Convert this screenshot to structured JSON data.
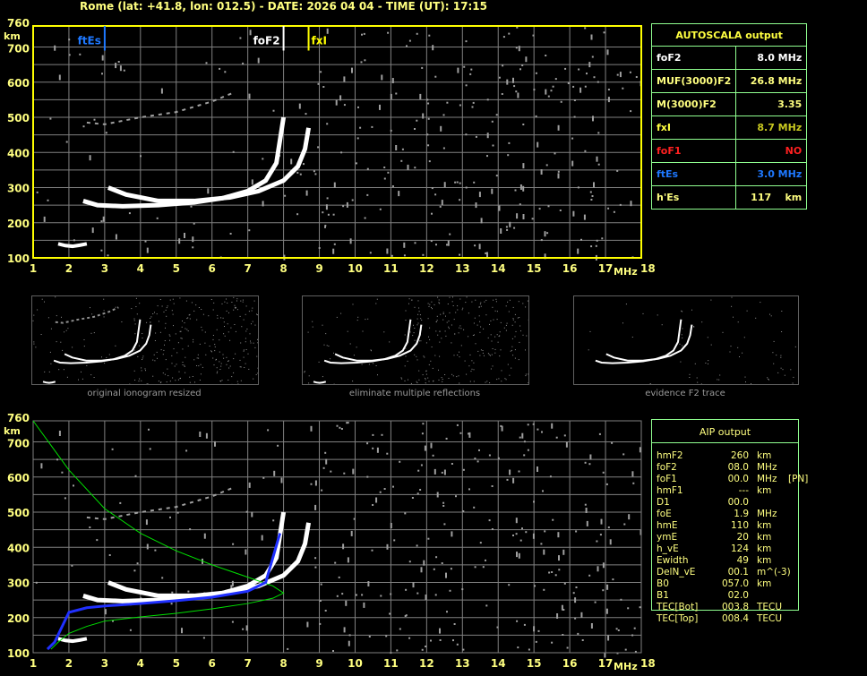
{
  "header": {
    "title": "Rome (lat: +41.8, lon: 012.5) - DATE: 2026 04 04 - TIME (UT): 17:15"
  },
  "colors": {
    "axis": "#ffff00",
    "grid": "#808080",
    "foF2": "#ffffff",
    "fxI": "#ffff00",
    "ftEs": "#1e78ff",
    "foF1": "#ff2020",
    "profile": "#00e000",
    "trace_fit": "#2030ff"
  },
  "thumbnails": [
    {
      "caption": "original ionogram resized"
    },
    {
      "caption": "eliminate multiple reflections"
    },
    {
      "caption": "evidence F2 trace"
    }
  ],
  "autoscala": {
    "title": "AUTOSCALA output",
    "rows": [
      {
        "label": "foF2",
        "value": "8.0 MHz",
        "color": "#ffffff"
      },
      {
        "label": "MUF(3000)F2",
        "value": "26.8 MHz",
        "color": "#ffff80"
      },
      {
        "label": "M(3000)F2",
        "value": "3.35",
        "color": "#ffff80"
      },
      {
        "label": "fxI",
        "value": "8.7 MHz",
        "color": "#ffff40",
        "value_color": "#c8c820"
      },
      {
        "label": "foF1",
        "value": "NO",
        "color": "#ff2020"
      },
      {
        "label": "ftEs",
        "value": "3.0 MHz",
        "color": "#1e78ff"
      },
      {
        "label": "h'Es",
        "value": "117    km",
        "color": "#ffff80"
      }
    ]
  },
  "aip": {
    "title": "AIP output",
    "rows": [
      {
        "name": "hmF2",
        "value": "260",
        "unit": "km",
        "extra": ""
      },
      {
        "name": "foF2",
        "value": "08.0",
        "unit": "MHz",
        "extra": ""
      },
      {
        "name": "foF1",
        "value": "00.0",
        "unit": "MHz",
        "extra": "[PN]"
      },
      {
        "name": "hmF1",
        "value": "---",
        "unit": "km",
        "extra": ""
      },
      {
        "name": "D1",
        "value": "00.0",
        "unit": "",
        "extra": ""
      },
      {
        "name": "foE",
        "value": "1.9",
        "unit": "MHz",
        "extra": ""
      },
      {
        "name": "hmE",
        "value": "110",
        "unit": "km",
        "extra": ""
      },
      {
        "name": "ymE",
        "value": "20",
        "unit": "km",
        "extra": ""
      },
      {
        "name": "h_vE",
        "value": "124",
        "unit": "km",
        "extra": ""
      },
      {
        "name": "Ewidth",
        "value": "49",
        "unit": "km",
        "extra": ""
      },
      {
        "name": "DelN_vE",
        "value": "00.1",
        "unit": "m^(-3)",
        "extra": ""
      },
      {
        "name": "B0",
        "value": "057.0",
        "unit": "km",
        "extra": ""
      },
      {
        "name": "B1",
        "value": "02.0",
        "unit": "",
        "extra": ""
      },
      {
        "name": "TEC[Bot]",
        "value": "003.8",
        "unit": "TECU",
        "extra": ""
      },
      {
        "name": "TEC[Top]",
        "value": "008.4",
        "unit": "TECU",
        "extra": ""
      }
    ]
  },
  "chart_data": [
    {
      "type": "scatter",
      "title": "",
      "xlabel": "MHz",
      "ylabel": "km",
      "xlim": [
        1,
        18
      ],
      "ylim": [
        100,
        760
      ],
      "grid": true,
      "xticks": [
        "1",
        "2",
        "3",
        "4",
        "5",
        "6",
        "7",
        "8",
        "9",
        "10",
        "11",
        "12",
        "13",
        "14",
        "15",
        "16",
        "17",
        "18"
      ],
      "yticks": [
        "100",
        "200",
        "300",
        "400",
        "500",
        "600",
        "700",
        "760"
      ],
      "markers": [
        {
          "label": "ftEs",
          "x": 3.0
        },
        {
          "label": "foF2",
          "x": 8.0
        },
        {
          "label": "fxI",
          "x": 8.7
        }
      ],
      "series": [
        {
          "id": "o_trace",
          "x": [
            2.4,
            2.8,
            3.5,
            4.5,
            5.5,
            6.3,
            7.0,
            7.5,
            7.8,
            8.0
          ],
          "y": [
            262,
            250,
            247,
            250,
            258,
            270,
            290,
            320,
            370,
            500
          ]
        },
        {
          "id": "x_trace",
          "x": [
            3.1,
            3.6,
            4.5,
            5.5,
            6.5,
            7.3,
            8.0,
            8.4,
            8.6,
            8.7
          ],
          "y": [
            300,
            280,
            262,
            262,
            272,
            290,
            320,
            360,
            410,
            470
          ]
        },
        {
          "id": "es_trace",
          "x": [
            1.7,
            1.9,
            2.1,
            2.3,
            2.5
          ],
          "y": [
            140,
            135,
            133,
            136,
            140
          ]
        },
        {
          "id": "multiple",
          "x": [
            2.5,
            3.0,
            4.0,
            5.0,
            6.0,
            6.6
          ],
          "y": [
            485,
            480,
            500,
            515,
            545,
            570
          ]
        }
      ]
    },
    {
      "type": "line",
      "title": "",
      "xlabel": "MHz",
      "ylabel": "km",
      "xlim": [
        1,
        18
      ],
      "ylim": [
        100,
        760
      ],
      "grid": true,
      "series": [
        {
          "id": "profile",
          "x": [
            1.0,
            1.5,
            2.0,
            3.0,
            4.0,
            5.0,
            6.0,
            7.0,
            7.7,
            8.0,
            7.7,
            7.0,
            6.0,
            5.0,
            4.0,
            3.0,
            2.5,
            2.0,
            1.7,
            1.5
          ],
          "y": [
            760,
            690,
            620,
            510,
            440,
            390,
            350,
            315,
            290,
            270,
            255,
            240,
            225,
            212,
            202,
            190,
            175,
            155,
            130,
            110
          ]
        },
        {
          "id": "fit",
          "x": [
            1.4,
            1.6,
            2.0,
            2.5,
            3.0,
            4.0,
            5.0,
            6.0,
            7.0,
            7.5,
            7.9
          ],
          "y": [
            110,
            130,
            215,
            228,
            233,
            240,
            248,
            258,
            275,
            300,
            440
          ]
        }
      ]
    }
  ]
}
